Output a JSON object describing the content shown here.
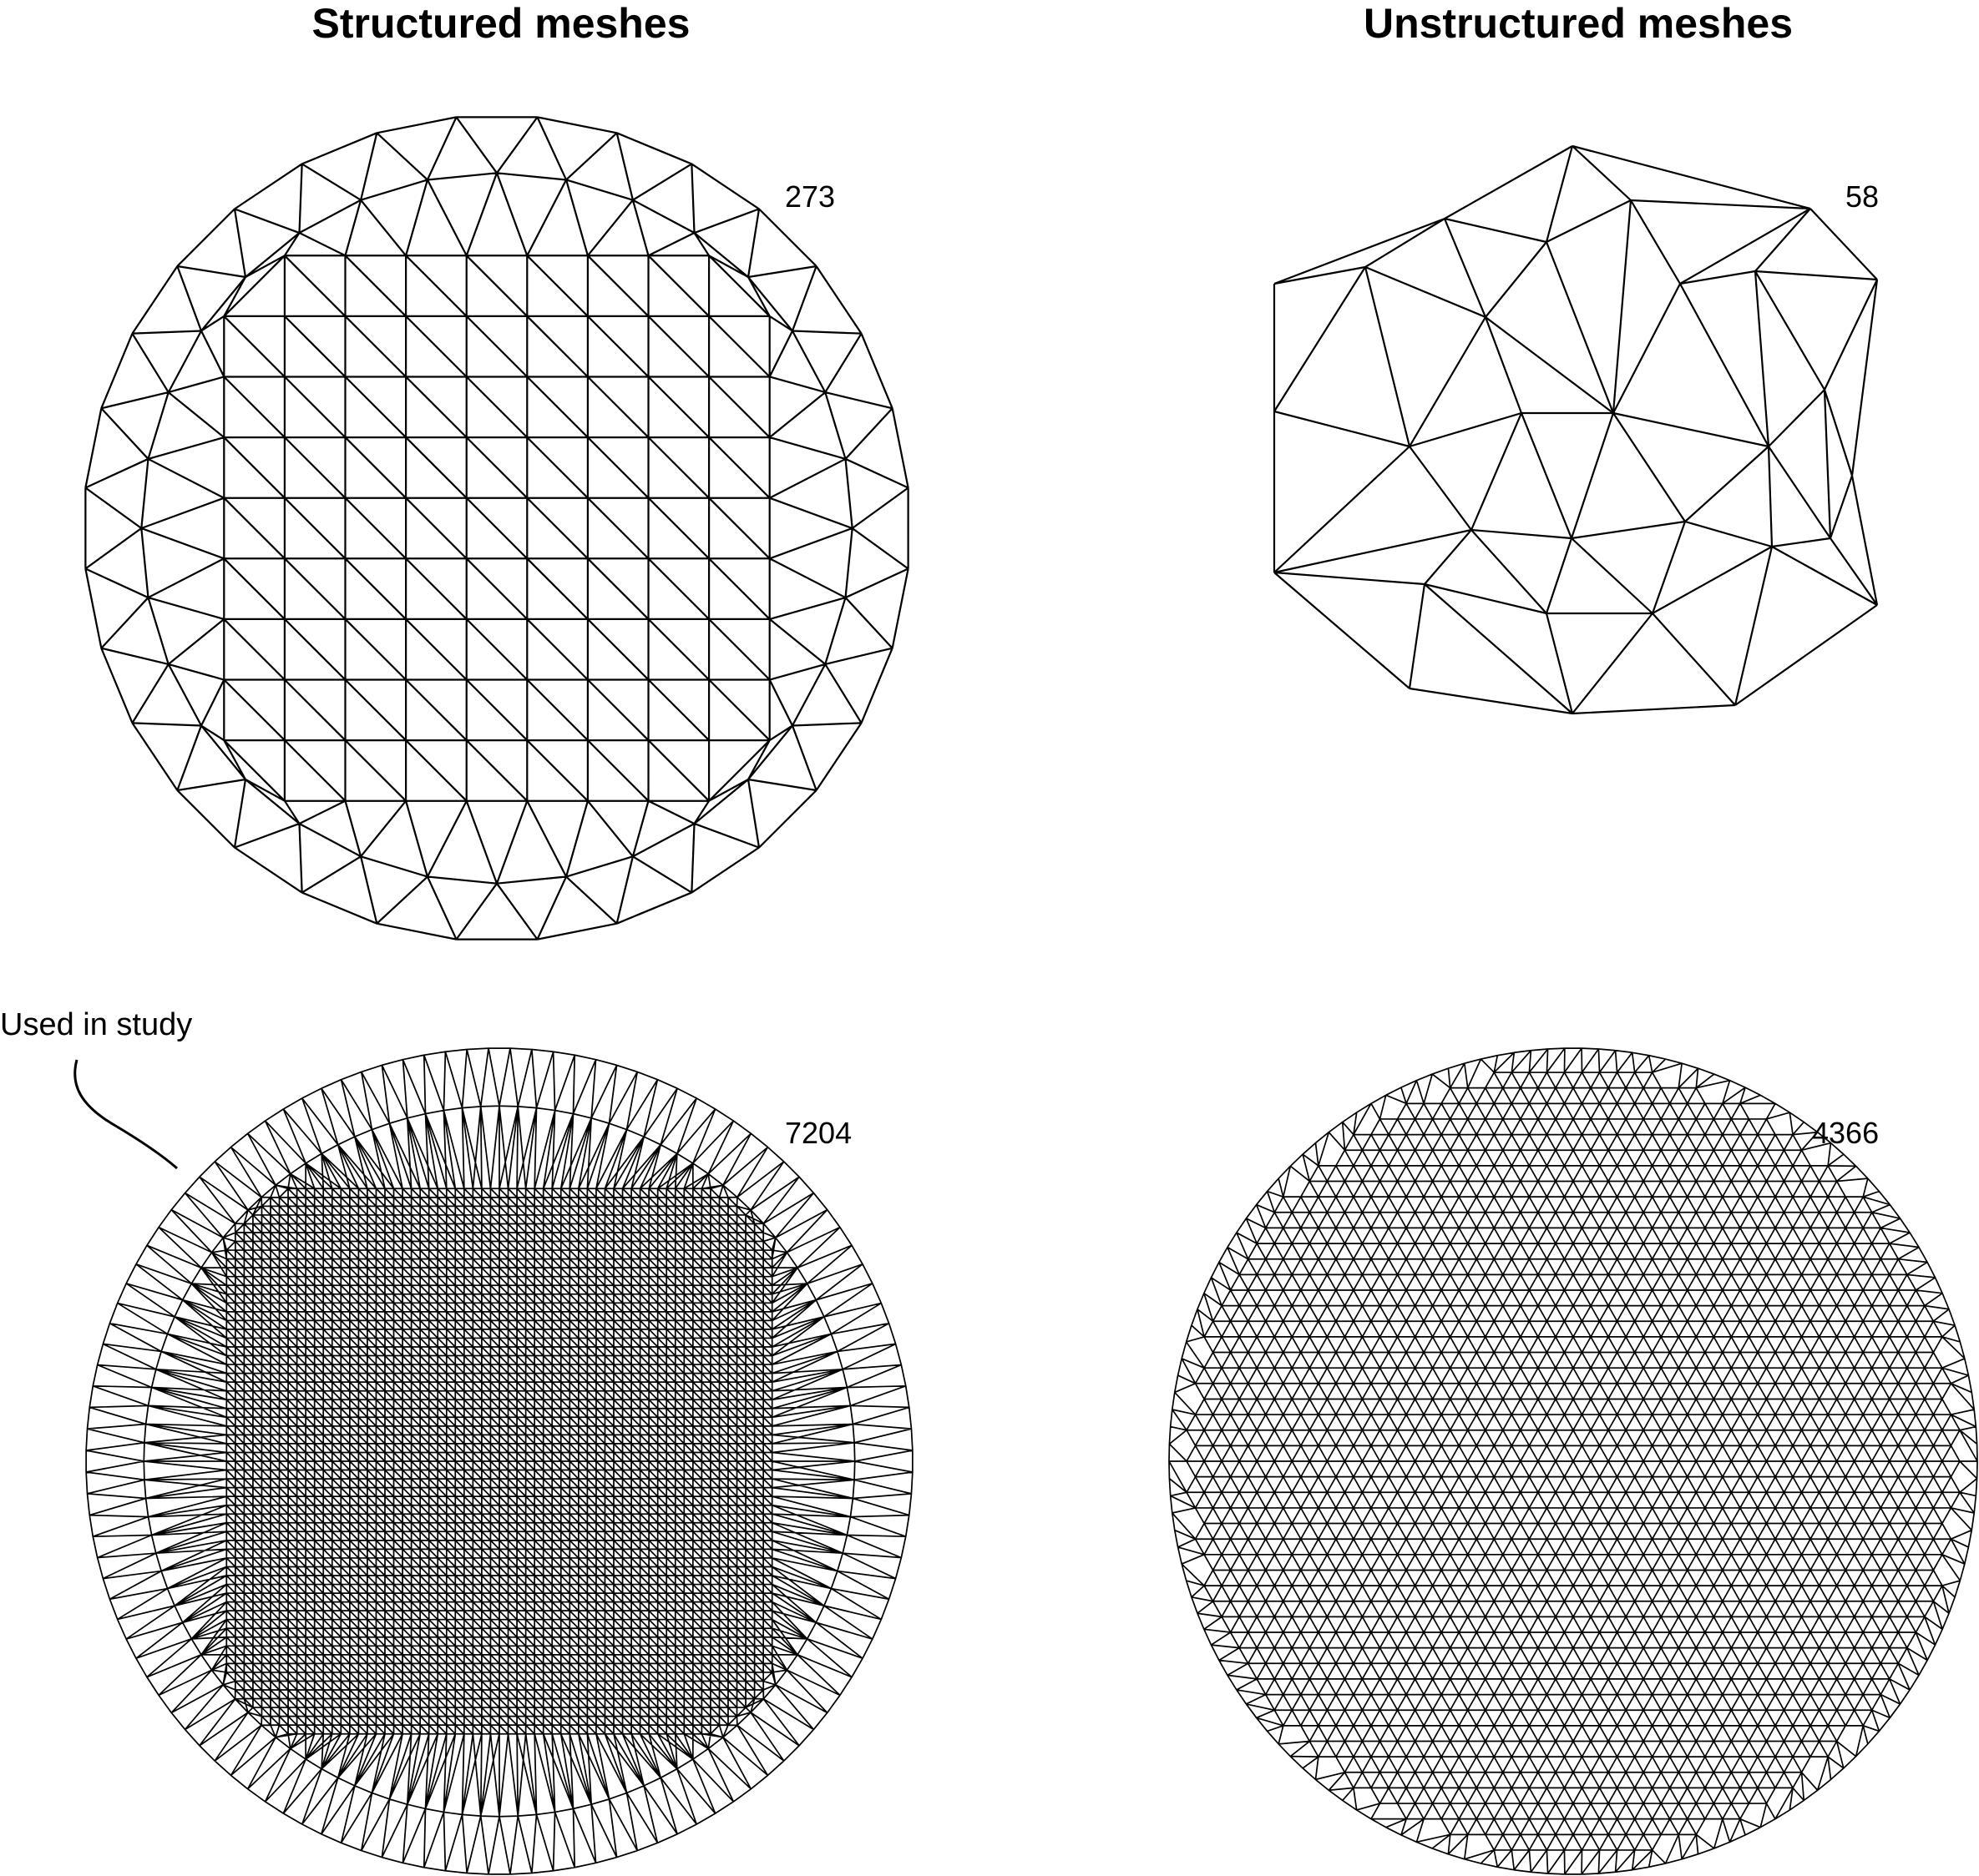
{
  "headings": {
    "structured": "Structured meshes",
    "unstructured": "Unstructured meshes"
  },
  "meshes": {
    "structured_coarse": {
      "count": "273",
      "kind": "structured",
      "grid_divisions": 9,
      "ring_segments": 32
    },
    "unstructured_coarse": {
      "count": "58",
      "kind": "unstructured",
      "boundary_segments": 12
    },
    "structured_fine": {
      "count": "7204",
      "kind": "structured",
      "grid_divisions": 62,
      "ring_segments": 120
    },
    "unstructured_fine": {
      "count": "4366",
      "kind": "unstructured",
      "lattice_divisions": 46
    }
  },
  "annotation": {
    "text": "Used in study"
  },
  "colors": {
    "line": "#000000",
    "background": "#ffffff"
  }
}
